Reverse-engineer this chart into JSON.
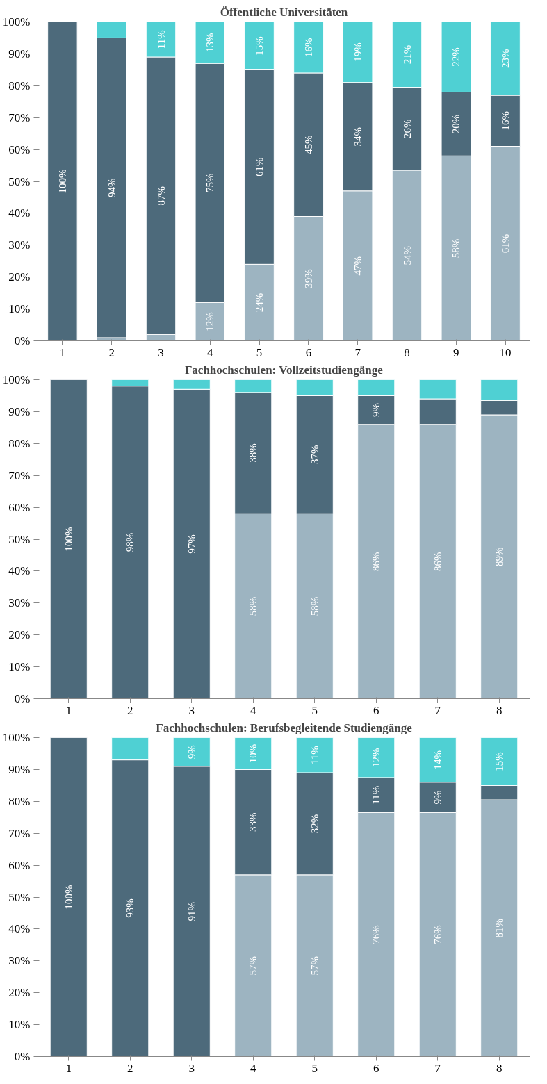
{
  "chart_data": [
    {
      "type": "bar",
      "stacked": true,
      "title": "Öffentliche Universitäten",
      "categories": [
        "1",
        "2",
        "3",
        "4",
        "5",
        "6",
        "7",
        "8",
        "9",
        "10"
      ],
      "ylim": [
        0,
        100
      ],
      "yticks": [
        {
          "value": 0,
          "label": "0%"
        },
        {
          "value": 10,
          "label": "10%"
        },
        {
          "value": 20,
          "label": "20%"
        },
        {
          "value": 30,
          "label": "30%"
        },
        {
          "value": 40,
          "label": "40%"
        },
        {
          "value": 50,
          "label": "50%"
        },
        {
          "value": 60,
          "label": "60%"
        },
        {
          "value": 70,
          "label": "70%"
        },
        {
          "value": 80,
          "label": "80%"
        },
        {
          "value": 90,
          "label": "90%"
        },
        {
          "value": 100,
          "label": "100%"
        }
      ],
      "series": [
        {
          "color": "#9db4c1",
          "values": [
            0,
            1,
            2,
            12,
            24,
            39,
            47,
            53.5,
            58,
            61
          ],
          "value_labels": [
            null,
            null,
            null,
            "12%",
            "24%",
            "39%",
            "47%",
            "54%",
            "58%",
            "61%"
          ]
        },
        {
          "color": "#4d6a7b",
          "values": [
            100,
            94,
            87,
            75,
            61,
            45,
            34,
            26,
            20,
            16
          ],
          "value_labels": [
            "100%",
            "94%",
            "87%",
            "75%",
            "61%",
            "45%",
            "34%",
            "26%",
            "20%",
            "16%"
          ]
        },
        {
          "color": "#4fd0d3",
          "values": [
            0,
            5,
            11,
            13,
            15,
            16,
            19,
            20.5,
            22,
            23
          ],
          "value_labels": [
            null,
            null,
            "11%",
            "13%",
            "15%",
            "16%",
            "19%",
            "21%",
            "22%",
            "23%"
          ]
        }
      ]
    },
    {
      "type": "bar",
      "stacked": true,
      "title": "Fachhochschulen: Vollzeitstudiengänge",
      "categories": [
        "1",
        "2",
        "3",
        "4",
        "5",
        "6",
        "7",
        "8"
      ],
      "ylim": [
        0,
        100
      ],
      "yticks": [
        {
          "value": 0,
          "label": "0%"
        },
        {
          "value": 10,
          "label": "10%"
        },
        {
          "value": 20,
          "label": "20%"
        },
        {
          "value": 30,
          "label": "30%"
        },
        {
          "value": 40,
          "label": "40%"
        },
        {
          "value": 50,
          "label": "50%"
        },
        {
          "value": 60,
          "label": "60%"
        },
        {
          "value": 70,
          "label": "70%"
        },
        {
          "value": 80,
          "label": "80%"
        },
        {
          "value": 90,
          "label": "90%"
        },
        {
          "value": 100,
          "label": "100%"
        }
      ],
      "series": [
        {
          "color": "#9db4c1",
          "values": [
            0,
            0,
            0,
            58,
            58,
            86,
            86,
            89
          ],
          "value_labels": [
            null,
            null,
            null,
            "58%",
            "58%",
            "86%",
            "86%",
            "89%"
          ]
        },
        {
          "color": "#4d6a7b",
          "values": [
            100,
            98,
            97,
            38,
            37,
            9,
            8,
            4.5
          ],
          "value_labels": [
            "100%",
            "98%",
            "97%",
            "38%",
            "37%",
            "9%",
            null,
            null
          ]
        },
        {
          "color": "#4fd0d3",
          "values": [
            0,
            2,
            3,
            4,
            5,
            5,
            6,
            6.5
          ],
          "value_labels": [
            null,
            null,
            null,
            null,
            null,
            null,
            null,
            null
          ]
        }
      ]
    },
    {
      "type": "bar",
      "stacked": true,
      "title": "Fachhochschulen: Berufsbegleitende Studiengänge",
      "categories": [
        "1",
        "2",
        "3",
        "4",
        "5",
        "6",
        "7",
        "8"
      ],
      "ylim": [
        0,
        100
      ],
      "yticks": [
        {
          "value": 0,
          "label": "0%"
        },
        {
          "value": 10,
          "label": "10%"
        },
        {
          "value": 20,
          "label": "20%"
        },
        {
          "value": 30,
          "label": "30%"
        },
        {
          "value": 40,
          "label": "40%"
        },
        {
          "value": 50,
          "label": "50%"
        },
        {
          "value": 60,
          "label": "60%"
        },
        {
          "value": 70,
          "label": "70%"
        },
        {
          "value": 80,
          "label": "80%"
        },
        {
          "value": 90,
          "label": "90%"
        },
        {
          "value": 100,
          "label": "100%"
        }
      ],
      "series": [
        {
          "color": "#9db4c1",
          "values": [
            0,
            0,
            0,
            57,
            57,
            76.5,
            76.5,
            80.5
          ],
          "value_labels": [
            null,
            null,
            null,
            "57%",
            "57%",
            "76%",
            "76%",
            "81%"
          ]
        },
        {
          "color": "#4d6a7b",
          "values": [
            100,
            93,
            91,
            33,
            32,
            11,
            9.5,
            4.5
          ],
          "value_labels": [
            "100%",
            "93%",
            "91%",
            "33%",
            "32%",
            "11%",
            "9%",
            null
          ]
        },
        {
          "color": "#4fd0d3",
          "values": [
            0,
            7,
            9,
            10,
            11,
            12.5,
            14,
            15
          ],
          "value_labels": [
            null,
            null,
            "9%",
            "10%",
            "11%",
            "12%",
            "14%",
            "15%"
          ]
        }
      ]
    }
  ]
}
